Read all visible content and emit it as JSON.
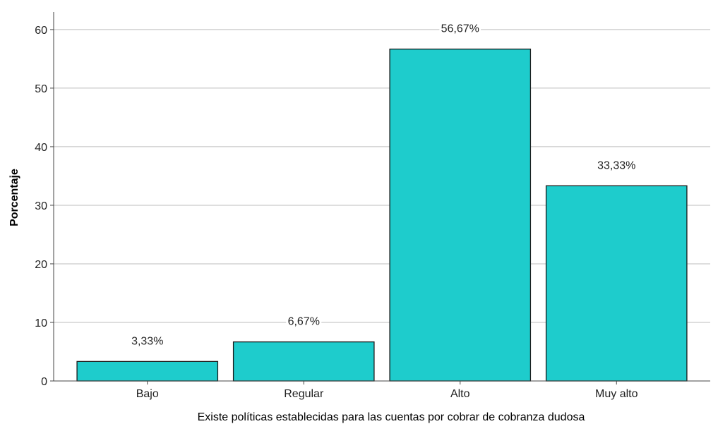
{
  "chart_data": {
    "type": "bar",
    "categories": [
      "Bajo",
      "Regular",
      "Alto",
      "Muy alto"
    ],
    "values": [
      3.33,
      6.67,
      56.67,
      33.33
    ],
    "data_labels": [
      "3,33%",
      "6,67%",
      "56,67%",
      "33,33%"
    ],
    "xlabel": "Existe políticas establecidas para las cuentas por cobrar de cobranza dudosa",
    "ylabel": "Porcentaje",
    "ylim": [
      0,
      63
    ],
    "yticks": [
      0,
      10,
      20,
      30,
      40,
      50,
      60
    ],
    "grid": true,
    "legend": "none",
    "colors": {
      "bar_fill": "#1ECCCC",
      "bar_stroke": "#1a1a1a",
      "grid": "#bdbdbd",
      "axis": "#444444"
    }
  }
}
